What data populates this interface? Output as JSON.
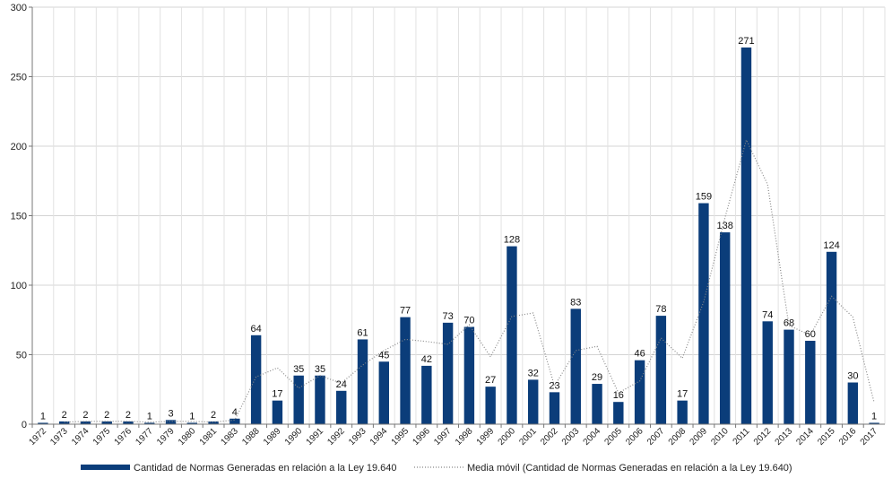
{
  "chart_data": {
    "type": "bar",
    "title": "",
    "xlabel": "",
    "ylabel": "",
    "ylim": [
      0,
      300
    ],
    "yticks": [
      0,
      50,
      100,
      150,
      200,
      250,
      300
    ],
    "grid": true,
    "legend_position": "bottom",
    "categories": [
      "1972",
      "1973",
      "1974",
      "1975",
      "1976",
      "1977",
      "1979",
      "1980",
      "1981",
      "1983",
      "1988",
      "1989",
      "1990",
      "1991",
      "1992",
      "1993",
      "1994",
      "1995",
      "1996",
      "1997",
      "1998",
      "1999",
      "2000",
      "2001",
      "2002",
      "2003",
      "2004",
      "2005",
      "2006",
      "2007",
      "2008",
      "2009",
      "2010",
      "2011",
      "2012",
      "2013",
      "2014",
      "2015",
      "2016",
      "2017"
    ],
    "series": [
      {
        "name": "Cantidad de Normas Generadas en relación a la Ley 19.640",
        "type": "bar",
        "color": "#0b3d7a",
        "values": [
          1,
          2,
          2,
          2,
          2,
          1,
          3,
          1,
          2,
          4,
          64,
          17,
          35,
          35,
          24,
          61,
          45,
          77,
          42,
          73,
          70,
          27,
          128,
          32,
          23,
          83,
          29,
          16,
          46,
          78,
          17,
          159,
          138,
          271,
          74,
          68,
          60,
          124,
          30,
          1
        ]
      },
      {
        "name": "Media móvil (Cantidad de Normas Generadas en relación a la Ley 19.640)",
        "type": "line",
        "style": "dotted",
        "color": "#888888",
        "values": [
          null,
          1.5,
          2,
          2,
          2,
          1.5,
          2,
          2,
          1.5,
          3,
          34,
          40.5,
          26,
          35,
          29.5,
          42.5,
          53,
          61,
          59.5,
          57.5,
          71.5,
          48.5,
          77.5,
          80,
          27.5,
          53,
          56,
          22.5,
          31,
          62,
          47.5,
          88,
          148.5,
          204.5,
          172.5,
          71,
          64,
          92,
          77,
          15.5
        ]
      }
    ]
  }
}
